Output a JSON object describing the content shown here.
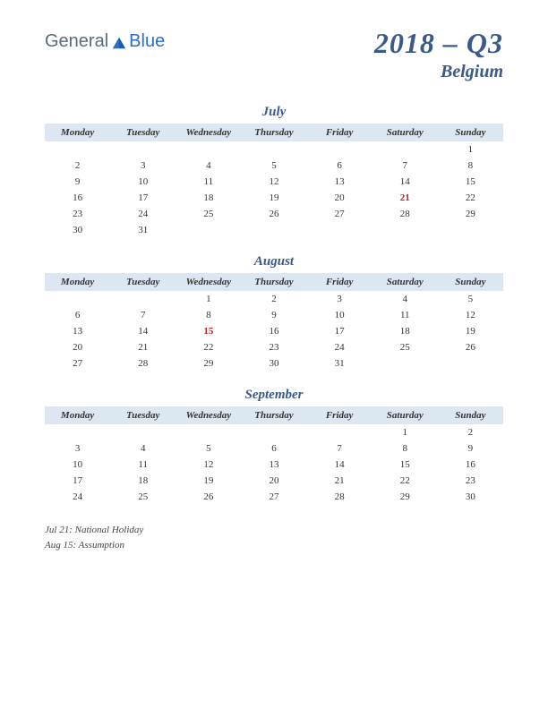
{
  "logo": {
    "part1": "General",
    "part2": "Blue"
  },
  "title": "2018 – Q3",
  "subtitle": "Belgium",
  "day_headers": [
    "Monday",
    "Tuesday",
    "Wednesday",
    "Thursday",
    "Friday",
    "Saturday",
    "Sunday"
  ],
  "months": [
    {
      "name": "July",
      "weeks": [
        [
          "",
          "",
          "",
          "",
          "",
          "",
          "1"
        ],
        [
          "2",
          "3",
          "4",
          "5",
          "6",
          "7",
          "8"
        ],
        [
          "9",
          "10",
          "11",
          "12",
          "13",
          "14",
          "15"
        ],
        [
          "16",
          "17",
          "18",
          "19",
          "20",
          "21",
          "22"
        ],
        [
          "23",
          "24",
          "25",
          "26",
          "27",
          "28",
          "29"
        ],
        [
          "30",
          "31",
          "",
          "",
          "",
          "",
          ""
        ]
      ],
      "holidays": [
        "21"
      ]
    },
    {
      "name": "August",
      "weeks": [
        [
          "",
          "",
          "1",
          "2",
          "3",
          "4",
          "5"
        ],
        [
          "6",
          "7",
          "8",
          "9",
          "10",
          "11",
          "12"
        ],
        [
          "13",
          "14",
          "15",
          "16",
          "17",
          "18",
          "19"
        ],
        [
          "20",
          "21",
          "22",
          "23",
          "24",
          "25",
          "26"
        ],
        [
          "27",
          "28",
          "29",
          "30",
          "31",
          "",
          ""
        ]
      ],
      "holidays": [
        "15"
      ]
    },
    {
      "name": "September",
      "weeks": [
        [
          "",
          "",
          "",
          "",
          "",
          "1",
          "2"
        ],
        [
          "3",
          "4",
          "5",
          "6",
          "7",
          "8",
          "9"
        ],
        [
          "10",
          "11",
          "12",
          "13",
          "14",
          "15",
          "16"
        ],
        [
          "17",
          "18",
          "19",
          "20",
          "21",
          "22",
          "23"
        ],
        [
          "24",
          "25",
          "26",
          "27",
          "28",
          "29",
          "30"
        ]
      ],
      "holidays": []
    }
  ],
  "holiday_notes": [
    "Jul 21: National Holiday",
    "Aug 15: Assumption"
  ],
  "colors": {
    "header_bg": "#dde7f2",
    "accent": "#3a5a8a",
    "holiday": "#c02020",
    "logo_gray": "#5a6b7a",
    "logo_blue": "#2a6fc9"
  }
}
